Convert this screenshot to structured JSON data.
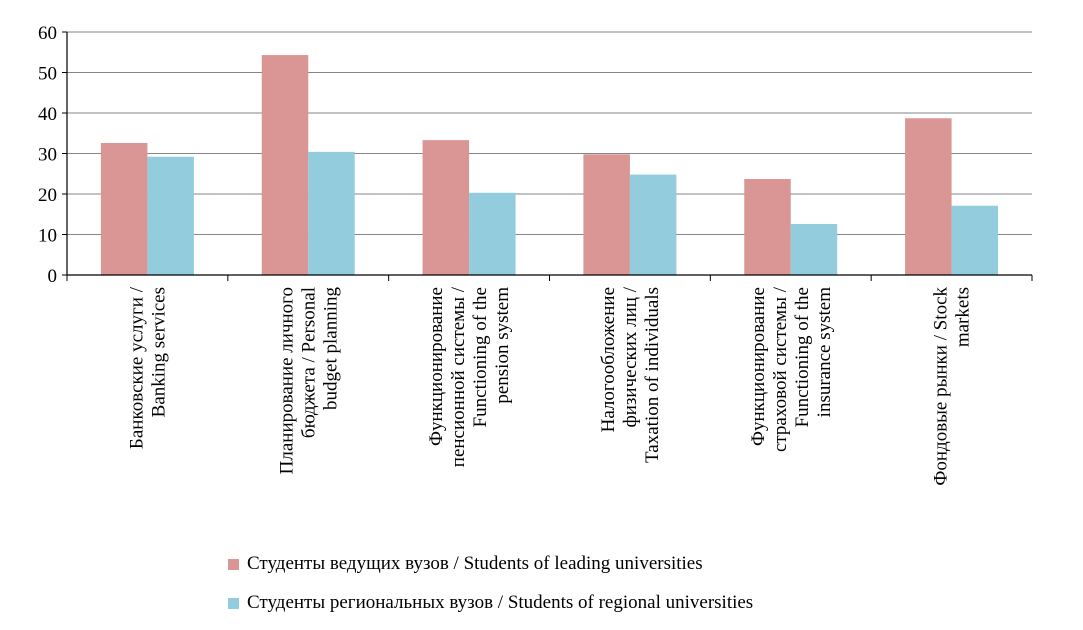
{
  "chart_data": {
    "type": "bar",
    "categories": [
      [
        "Банковские услуги /",
        "Banking services"
      ],
      [
        "Планирование личного",
        "бюджета / Personal",
        "budget planning"
      ],
      [
        "Функционирование",
        "пенсионной системы /",
        "Functioning of the",
        "pension system"
      ],
      [
        "Налогообложение",
        "физических лиц /",
        "Taxation of individuals"
      ],
      [
        "Функционирование",
        "страховой системы /",
        "Functioning of the",
        "insurance system"
      ],
      [
        "Фондовые рынки / Stock",
        "markets"
      ]
    ],
    "series": [
      {
        "name": "Студенты ведущих вузов / Students of leading universities",
        "color": "#d99694",
        "values": [
          32.6,
          54.3,
          33.3,
          29.8,
          23.7,
          38.7
        ]
      },
      {
        "name": "Студенты региональных вузов / Students of regional universities",
        "color": "#93cddd",
        "values": [
          29.2,
          30.4,
          20.3,
          24.8,
          12.6,
          17.1
        ]
      }
    ],
    "ylim": [
      0,
      60
    ],
    "yticks": [
      0,
      10,
      20,
      30,
      40,
      50,
      60
    ],
    "grid": true,
    "legend": "bottom"
  }
}
